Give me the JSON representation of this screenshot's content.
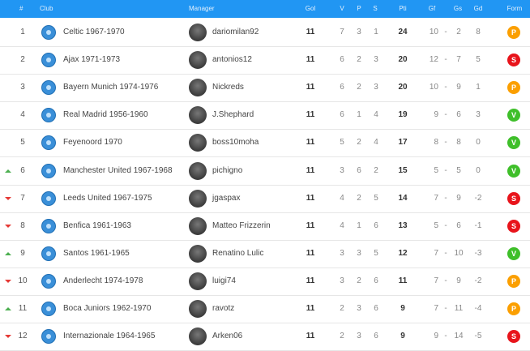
{
  "table": {
    "header": [
      "#",
      "Club",
      "Manager",
      "Gol",
      "V",
      "P",
      "S",
      "Pti",
      "Gf",
      "Gs",
      "Gd",
      "Form"
    ],
    "score_separator": "-",
    "rows": [
      {
        "pos": 1,
        "club": "Celtic 1967-1970",
        "manager": "dariomilan92",
        "gol": 11,
        "v": 7,
        "p": 3,
        "s": 1,
        "pti": 24,
        "gf": 10,
        "gs": 2,
        "gd": 8,
        "form": "P"
      },
      {
        "pos": 2,
        "club": "Ajax 1971-1973",
        "manager": "antonios12",
        "gol": 11,
        "v": 6,
        "p": 2,
        "s": 3,
        "pti": 20,
        "gf": 12,
        "gs": 7,
        "gd": 5,
        "form": "S"
      },
      {
        "pos": 3,
        "club": "Bayern Munich 1974-1976",
        "manager": "Nickreds",
        "gol": 11,
        "v": 6,
        "p": 2,
        "s": 3,
        "pti": 20,
        "gf": 10,
        "gs": 9,
        "gd": 1,
        "form": "P"
      },
      {
        "pos": 4,
        "club": "Real Madrid 1956-1960",
        "manager": "J.Shephard",
        "gol": 11,
        "v": 6,
        "p": 1,
        "s": 4,
        "pti": 19,
        "gf": 9,
        "gs": 6,
        "gd": 3,
        "form": "V"
      },
      {
        "pos": 5,
        "club": "Feyenoord 1970",
        "manager": "boss10moha",
        "gol": 11,
        "v": 5,
        "p": 2,
        "s": 4,
        "pti": 17,
        "gf": 8,
        "gs": 8,
        "gd": 0,
        "form": "V"
      },
      {
        "pos": 6,
        "trend": "up",
        "club": "Manchester United 1967-1968",
        "manager": "pichigno",
        "gol": 11,
        "v": 3,
        "p": 6,
        "s": 2,
        "pti": 15,
        "gf": 5,
        "gs": 5,
        "gd": 0,
        "form": "V"
      },
      {
        "pos": 7,
        "trend": "down",
        "club": "Leeds United 1967-1975",
        "manager": "jgaspax",
        "gol": 11,
        "v": 4,
        "p": 2,
        "s": 5,
        "pti": 14,
        "gf": 7,
        "gs": 9,
        "gd": -2,
        "form": "S"
      },
      {
        "pos": 8,
        "trend": "down",
        "club": "Benfica 1961-1963",
        "manager": "Matteo Frizzerin",
        "gol": 11,
        "v": 4,
        "p": 1,
        "s": 6,
        "pti": 13,
        "gf": 5,
        "gs": 6,
        "gd": -1,
        "form": "S"
      },
      {
        "pos": 9,
        "trend": "up",
        "club": "Santos 1961-1965",
        "manager": "Renatino Lulic",
        "gol": 11,
        "v": 3,
        "p": 3,
        "s": 5,
        "pti": 12,
        "gf": 7,
        "gs": 10,
        "gd": -3,
        "form": "V"
      },
      {
        "pos": 10,
        "trend": "down",
        "club": "Anderlecht 1974-1978",
        "manager": "luigi74",
        "gol": 11,
        "v": 3,
        "p": 2,
        "s": 6,
        "pti": 11,
        "gf": 7,
        "gs": 9,
        "gd": -2,
        "form": "P"
      },
      {
        "pos": 11,
        "trend": "up",
        "club": "Boca Juniors 1962-1970",
        "manager": "ravotz",
        "gol": 11,
        "v": 2,
        "p": 3,
        "s": 6,
        "pti": 9,
        "gf": 7,
        "gs": 11,
        "gd": -4,
        "form": "P"
      },
      {
        "pos": 12,
        "trend": "down",
        "club": "Internazionale 1964-1965",
        "manager": "Arken06",
        "gol": 11,
        "v": 2,
        "p": 3,
        "s": 6,
        "pti": 9,
        "gf": 9,
        "gs": 14,
        "gd": -5,
        "form": "S"
      }
    ]
  }
}
